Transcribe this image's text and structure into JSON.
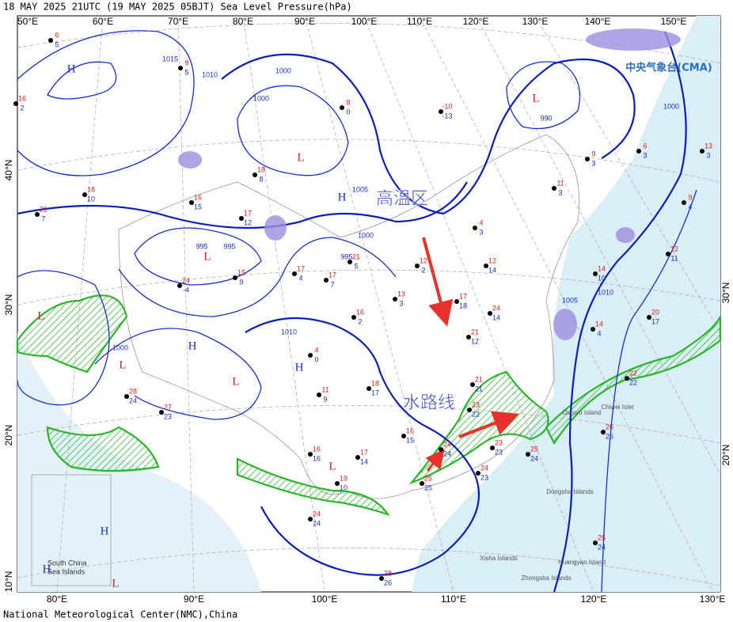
{
  "header": {
    "title": "18 MAY 2025 21UTC  (19 MAY 2025 05BJT) Sea Level Pressure(hPa)"
  },
  "footer": {
    "credit": "National Meteorological Center(NMC),China"
  },
  "logo": {
    "text": "中央气象台(CMA)"
  },
  "longitudes_top": [
    "50°E",
    "60°E",
    "70°E",
    "80°E",
    "90°E",
    "100°E",
    "110°E",
    "120°E",
    "130°E",
    "140°E",
    "150°E"
  ],
  "longitudes_bottom": [
    "80°E",
    "90°E",
    "100°E",
    "110°E",
    "120°E",
    "130°E"
  ],
  "latitudes_left": [
    "40°N",
    "30°N",
    "20°N",
    "10°N"
  ],
  "latitudes_right": [
    "30°N",
    "20°N"
  ],
  "pressure_centers": [
    "H",
    "L",
    "H",
    "L",
    "H",
    "L",
    "H",
    "L",
    "L",
    "L",
    "L",
    "H",
    "L",
    "H"
  ],
  "isobar_labels": [
    "1015",
    "1010",
    "1000",
    "1000",
    "995",
    "995",
    "1005",
    "1010",
    "1000",
    "995",
    "990",
    "1000",
    "1010",
    "1005",
    "1000"
  ],
  "annotations": [
    "高温区",
    "水路线"
  ],
  "islands": [
    "Chiwei Islet",
    "Diaoyu Island",
    "Dongsha Islands",
    "Xisha Islands",
    "Huangyan Island",
    "Zhongsha Islands"
  ],
  "inset": {
    "label_line1": "South China",
    "label_line2": "Sea Islands"
  },
  "stations": [
    {
      "temp": 6,
      "dew": 5
    },
    {
      "temp": 16,
      "dew": 2
    },
    {
      "temp": 18,
      "dew": 10
    },
    {
      "temp": 21,
      "dew": 7
    },
    {
      "temp": 9,
      "dew": 5
    },
    {
      "temp": 8,
      "dew": 0
    },
    {
      "temp": -10,
      "dew": -13
    },
    {
      "temp": 18,
      "dew": 8
    },
    {
      "temp": 16,
      "dew": 15
    },
    {
      "temp": 17,
      "dew": 12
    },
    {
      "temp": 24,
      "dew": -4
    },
    {
      "temp": 15,
      "dew": 9
    },
    {
      "temp": 17,
      "dew": 4
    },
    {
      "temp": 17,
      "dew": 7
    },
    {
      "temp": 21,
      "dew": 5
    },
    {
      "temp": 16,
      "dew": 2
    },
    {
      "temp": 4,
      "dew": 0
    },
    {
      "temp": 11,
      "dew": 9
    },
    {
      "temp": 18,
      "dew": 17
    },
    {
      "temp": 16,
      "dew": 15
    },
    {
      "temp": 17,
      "dew": 14
    },
    {
      "temp": 19,
      "dew": 10
    },
    {
      "temp": 16,
      "dew": 16
    },
    {
      "temp": 25,
      "dew": 25
    },
    {
      "temp": 24,
      "dew": 24
    },
    {
      "temp": 23,
      "dew": 23
    },
    {
      "temp": 24,
      "dew": 23
    },
    {
      "temp": 25,
      "dew": 24
    },
    {
      "temp": 23,
      "dew": 22
    },
    {
      "temp": 21,
      "dew": 21
    },
    {
      "temp": 21,
      "dew": 12
    },
    {
      "temp": 24,
      "dew": 14
    },
    {
      "temp": 17,
      "dew": 18
    },
    {
      "temp": 13,
      "dew": 3
    },
    {
      "temp": 12,
      "dew": 2
    },
    {
      "temp": 4,
      "dew": 3
    },
    {
      "temp": 12,
      "dew": 14
    },
    {
      "temp": 9,
      "dew": 3
    },
    {
      "temp": 11,
      "dew": 3
    },
    {
      "temp": 6,
      "dew": 3
    },
    {
      "temp": 9,
      "dew": 4
    },
    {
      "temp": 13,
      "dew": 3
    },
    {
      "temp": 14,
      "dew": 10
    },
    {
      "temp": 20,
      "dew": 17
    },
    {
      "temp": 14,
      "dew": 4
    },
    {
      "temp": 12,
      "dew": 11
    },
    {
      "temp": 22,
      "dew": 22
    },
    {
      "temp": 26,
      "dew": 26
    },
    {
      "temp": 25,
      "dew": 24
    },
    {
      "temp": 28,
      "dew": 26
    },
    {
      "temp": 24,
      "dew": 24
    },
    {
      "temp": 27,
      "dew": 23
    },
    {
      "temp": 28,
      "dew": 24
    }
  ]
}
